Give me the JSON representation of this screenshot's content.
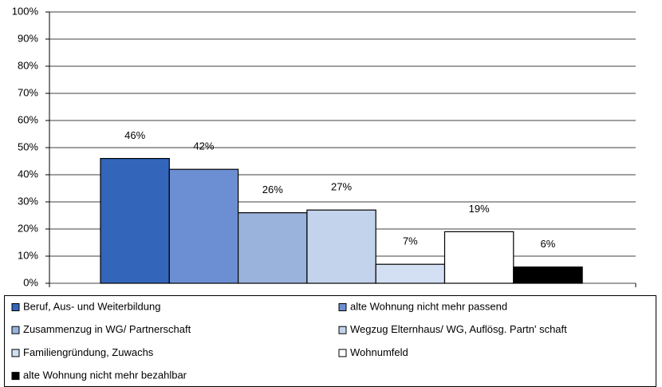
{
  "chart_data": {
    "type": "bar",
    "series": [
      {
        "name": "Beruf, Aus- und Weiterbildung",
        "color": "#3366bb",
        "values": [
          46
        ],
        "value_labels": [
          "46%"
        ]
      },
      {
        "name": "alte Wohnung nicht mehr passend",
        "color": "#6b8fd2",
        "values": [
          42
        ],
        "value_labels": [
          "42%"
        ]
      },
      {
        "name": "Zusammenzug in WG/ Partnerschaft",
        "color": "#99b3dd",
        "values": [
          26
        ],
        "value_labels": [
          "26%"
        ]
      },
      {
        "name": "Wegzug Elternhaus/ WG, Auflösg. Partn' schaft",
        "color": "#c3d3ec",
        "values": [
          27
        ],
        "value_labels": [
          "27%"
        ]
      },
      {
        "name": "Familiengründung, Zuwachs",
        "color": "#d3dff2",
        "values": [
          7
        ],
        "value_labels": [
          "7%"
        ]
      },
      {
        "name": "Wohnumfeld",
        "color": "#ffffff",
        "values": [
          19
        ],
        "value_labels": [
          "19%"
        ]
      },
      {
        "name": "alte Wohnung nicht mehr bezahlbar",
        "color": "#000000",
        "values": [
          6
        ],
        "value_labels": [
          "6%"
        ]
      }
    ],
    "ylim": [
      0,
      100
    ],
    "yticks": [
      {
        "value": 0,
        "label": "0%"
      },
      {
        "value": 10,
        "label": "10%"
      },
      {
        "value": 20,
        "label": "20%"
      },
      {
        "value": 30,
        "label": "30%"
      },
      {
        "value": 40,
        "label": "40%"
      },
      {
        "value": 50,
        "label": "50%"
      },
      {
        "value": 60,
        "label": "60%"
      },
      {
        "value": 70,
        "label": "70%"
      },
      {
        "value": 80,
        "label": "80%"
      },
      {
        "value": 90,
        "label": "90%"
      },
      {
        "value": 100,
        "label": "100%"
      }
    ],
    "grid": true,
    "legend": "bottom"
  }
}
